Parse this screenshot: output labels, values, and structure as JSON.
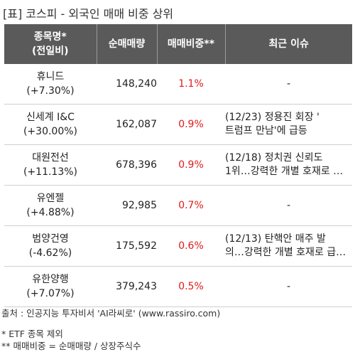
{
  "title": "[표] 코스피 - 외국인 매매 비중 상위",
  "columns": [
    "종목명*\n(전일비)",
    "순매매량",
    "매매비중**",
    "최근 이슈"
  ],
  "rows": [
    {
      "name": "휴니드",
      "change": "(+7.30%)",
      "volume": "148,240",
      "ratio": "1.1%",
      "issue": [
        "-"
      ]
    },
    {
      "name": "신세계 I&C",
      "change": "(+30.00%)",
      "volume": "162,087",
      "ratio": "0.9%",
      "issue": [
        "(12/23) 정용진 회장 '",
        "트럼프 만남'에 급등"
      ]
    },
    {
      "name": "대원전선",
      "change": "(+11.13%)",
      "volume": "678,396",
      "ratio": "0.9%",
      "issue": [
        "(12/18) 정치권 신뢰도",
        "1위…강력한 개별 호재로 …"
      ]
    },
    {
      "name": "유엔젤",
      "change": "(+4.88%)",
      "volume": "92,985",
      "ratio": "0.7%",
      "issue": [
        "-"
      ]
    },
    {
      "name": "범양건영",
      "change": "(-4.62%)",
      "volume": "175,592",
      "ratio": "0.6%",
      "issue": [
        "(12/13) 탄핵안 매주 발",
        "의…강력한 개별 호재로 급…"
      ]
    },
    {
      "name": "유한양행",
      "change": "(+7.07%)",
      "volume": "379,243",
      "ratio": "0.5%",
      "issue": [
        "-"
      ]
    }
  ],
  "source": "출처 : 인공지능 투자비서 'AI라씨로' (www.rassiro.com)",
  "notes": [
    "* ETF 종목 제외",
    "** 매매비중 = 순매매량 / 상장주식수"
  ],
  "colors": {
    "header_bg": "#5a5a5a",
    "ratio_text": "#e01a1a"
  }
}
